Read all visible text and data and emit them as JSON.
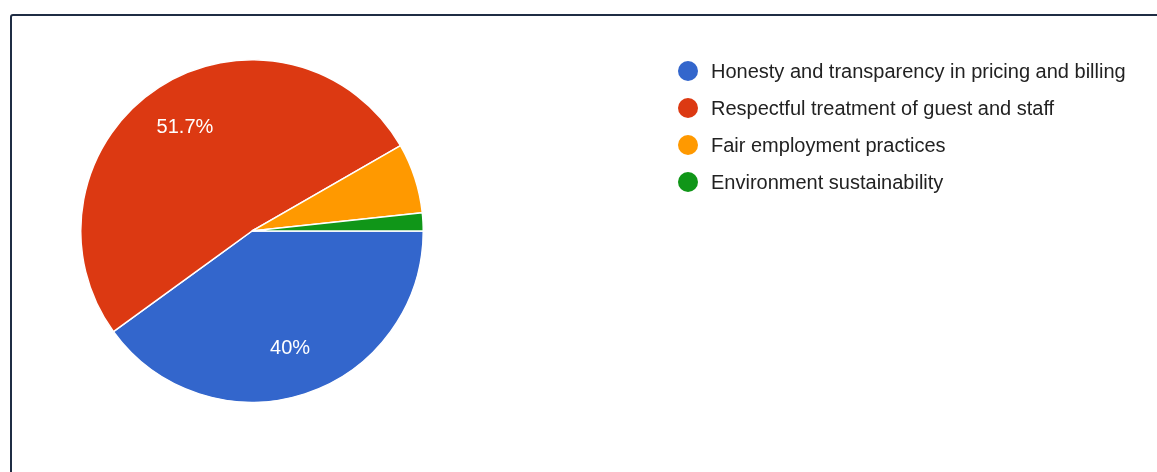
{
  "chart_data": {
    "type": "pie",
    "categories": [
      "Honesty and transparency in pricing and billing",
      "Respectful treatment of guest and staff",
      "Fair employment practices",
      "Environment sustainability"
    ],
    "values": [
      40,
      51.7,
      6.6,
      1.7
    ],
    "colors": [
      "#3366cc",
      "#dc3912",
      "#ff9900",
      "#109618"
    ],
    "value_labels": [
      "40%",
      "51.7%",
      null,
      null
    ],
    "legend": "right"
  }
}
